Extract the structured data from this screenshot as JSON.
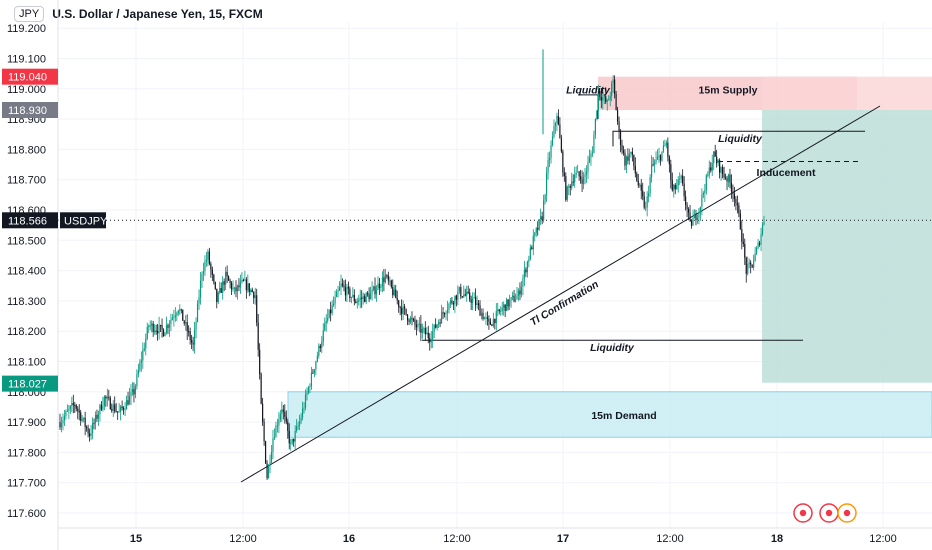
{
  "header": {
    "symbol_badge": "JPY",
    "title": "U.S. Dollar / Japanese Yen, 15, FXCM"
  },
  "chart_data": {
    "type": "candlestick",
    "title": "U.S. Dollar / Japanese Yen, 15, FXCM",
    "ylim": [
      117.58,
      119.24
    ],
    "y_ticks": [
      "117.600",
      "117.700",
      "117.800",
      "117.900",
      "118.000",
      "118.100",
      "118.200",
      "118.300",
      "118.400",
      "118.500",
      "118.600",
      "118.700",
      "118.800",
      "118.900",
      "119.000",
      "119.100",
      "119.200"
    ],
    "x_ticks": [
      "15",
      "12:00",
      "16",
      "12:00",
      "17",
      "12:00",
      "18",
      "12:00"
    ],
    "current_price": {
      "label": "USDJPY",
      "value": "118.566"
    },
    "price_tags": [
      {
        "value": "119.040",
        "color": "#f23645"
      },
      {
        "value": "118.930",
        "color": "#787b86"
      },
      {
        "value": "118.027",
        "color": "#089981"
      }
    ],
    "price_path": [
      [
        0,
        117.9
      ],
      [
        10,
        117.96
      ],
      [
        20,
        117.86
      ],
      [
        30,
        117.98
      ],
      [
        40,
        117.93
      ],
      [
        50,
        118.0
      ],
      [
        60,
        118.22
      ],
      [
        70,
        118.2
      ],
      [
        80,
        118.28
      ],
      [
        90,
        118.15
      ],
      [
        96,
        118.4
      ],
      [
        100,
        118.45
      ],
      [
        106,
        118.3
      ],
      [
        112,
        118.38
      ],
      [
        118,
        118.33
      ],
      [
        124,
        118.36
      ],
      [
        132,
        118.32
      ],
      [
        136,
        117.95
      ],
      [
        140,
        117.72
      ],
      [
        144,
        117.85
      ],
      [
        150,
        117.95
      ],
      [
        156,
        117.82
      ],
      [
        162,
        117.9
      ],
      [
        170,
        118.05
      ],
      [
        180,
        118.23
      ],
      [
        190,
        118.35
      ],
      [
        200,
        118.3
      ],
      [
        210,
        118.32
      ],
      [
        220,
        118.38
      ],
      [
        230,
        118.28
      ],
      [
        240,
        118.22
      ],
      [
        250,
        118.18
      ],
      [
        260,
        118.27
      ],
      [
        270,
        118.33
      ],
      [
        280,
        118.3
      ],
      [
        290,
        118.22
      ],
      [
        300,
        118.28
      ],
      [
        310,
        118.32
      ],
      [
        320,
        118.5
      ],
      [
        326,
        118.58
      ],
      [
        330,
        118.75
      ],
      [
        336,
        118.92
      ],
      [
        342,
        118.65
      ],
      [
        348,
        118.72
      ],
      [
        354,
        118.7
      ],
      [
        360,
        118.8
      ],
      [
        364,
        118.99
      ],
      [
        370,
        118.95
      ],
      [
        374,
        119.02
      ],
      [
        378,
        118.85
      ],
      [
        382,
        118.76
      ],
      [
        386,
        118.79
      ],
      [
        390,
        118.7
      ],
      [
        396,
        118.6
      ],
      [
        400,
        118.74
      ],
      [
        406,
        118.78
      ],
      [
        410,
        118.82
      ],
      [
        414,
        118.66
      ],
      [
        420,
        118.7
      ],
      [
        426,
        118.55
      ],
      [
        432,
        118.6
      ],
      [
        436,
        118.68
      ],
      [
        442,
        118.78
      ],
      [
        448,
        118.72
      ],
      [
        452,
        118.7
      ],
      [
        456,
        118.65
      ],
      [
        460,
        118.55
      ],
      [
        464,
        118.4
      ],
      [
        468,
        118.42
      ],
      [
        472,
        118.48
      ],
      [
        476,
        118.57
      ]
    ],
    "zones": [
      {
        "label": "15m Supply",
        "top": 119.04,
        "bottom": 118.93,
        "color": "#f7c5c8"
      },
      {
        "label": "15m Demand",
        "top": 118.0,
        "bottom": 117.85,
        "color": "#c6ecf2"
      },
      {
        "label": "",
        "top": 118.93,
        "bottom": 118.03,
        "color": "#b8dcd6"
      },
      {
        "label": "",
        "top": 119.04,
        "bottom": 118.93,
        "color": "#fbd4d6"
      }
    ],
    "annotations": [
      {
        "text": "Liquidity"
      },
      {
        "text": "Liquidity"
      },
      {
        "text": "Inducement"
      },
      {
        "text": "Tl Confirmation"
      },
      {
        "text": "Liquidity"
      },
      {
        "text": "15m Supply"
      },
      {
        "text": "15m Demand"
      }
    ],
    "grid": true
  }
}
